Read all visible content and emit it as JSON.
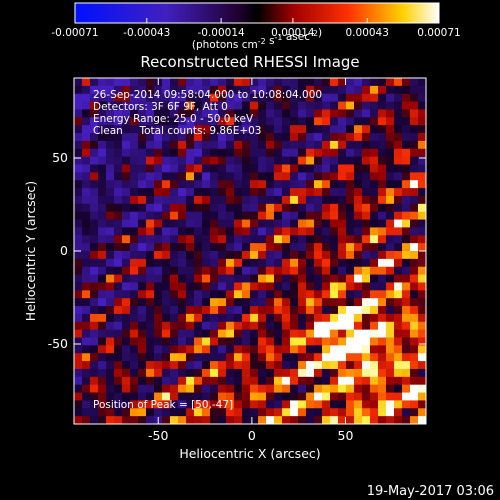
{
  "chart_data": {
    "type": "heatmap",
    "title": "Reconstructed RHESSI Image",
    "xlabel": "Heliocentric X (arcsec)",
    "ylabel": "Heliocentric Y (arcsec)",
    "xlim": [
      -95,
      93
    ],
    "ylim": [
      -93,
      93
    ],
    "x_ticks": [
      -50,
      0,
      50
    ],
    "y_ticks": [
      50,
      0,
      -50
    ],
    "colorbar": {
      "min": -0.00071,
      "max": 0.00071,
      "tick_values": [
        -0.00071,
        -0.00043,
        -0.00014,
        0.00014,
        0.00043,
        0.00071
      ],
      "tick_labels": [
        "-0.00071",
        "-0.00043",
        "-0.00014",
        "0.00014",
        "0.00043",
        "0.00071"
      ],
      "units_text": "(photons cm",
      "units_exp1": "-2",
      "units_mid": " s",
      "units_exp2": "-1",
      "units_mid2": " asec",
      "units_exp3": "-2",
      "units_end": ")"
    },
    "annotations": [
      "26-Sep-2014 09:58:04.000 to 10:08:04.000",
      "Detectors: 3F 6F 9F, Att 0",
      "Energy Range: 25.0 - 50.0 keV",
      "Clean     Total counts: 9.86E+03"
    ],
    "peak_label": "Position of Peak = [50,-47]",
    "peak_position": [
      50,
      -47
    ],
    "colors": {
      "background": "#000000",
      "negative": "#1010ff",
      "zero": "#000000",
      "positive_mid": "#ff2020",
      "positive_high": "#ffff40",
      "positive_max": "#ffffff"
    }
  },
  "footer": {
    "date": "19-May-2017 03:06"
  }
}
